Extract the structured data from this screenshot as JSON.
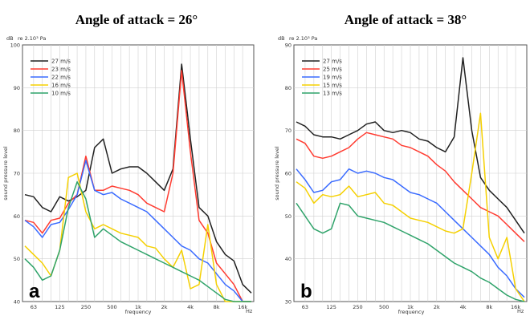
{
  "chart_data": [
    {
      "type": "line",
      "title": "Angle of attack = 26°",
      "panel_letter": "a",
      "unit_label": "dB",
      "ref_label": "re 2.10³ Pa",
      "ylabel": "sound pressure level",
      "xlabel": "frequency",
      "x_unit": "Hz",
      "ylim": [
        40,
        100
      ],
      "yticks": [
        40,
        50,
        60,
        70,
        80,
        90,
        100
      ],
      "x_tick_labels": [
        "63",
        "125",
        "250",
        "500",
        "1k",
        "2k",
        "4k",
        "8k",
        "16k"
      ],
      "x": [
        50,
        63,
        80,
        100,
        125,
        160,
        200,
        250,
        315,
        400,
        500,
        630,
        800,
        1000,
        1250,
        1600,
        2000,
        2500,
        3150,
        4000,
        5000,
        6300,
        8000,
        10000,
        12500,
        16000,
        20000
      ],
      "legend_position": "top-left",
      "series": [
        {
          "name": "27 m/s",
          "color": "#202020",
          "values": [
            65,
            64.5,
            62,
            61,
            64.5,
            63.5,
            64.5,
            66,
            76,
            78,
            70,
            71,
            71.5,
            71.5,
            70,
            68,
            66,
            71,
            95.5,
            78,
            62,
            60,
            54,
            51,
            49.5,
            44,
            42
          ]
        },
        {
          "name": "23 m/s",
          "color": "#ff3b30",
          "values": [
            59,
            58.5,
            56,
            59,
            59.5,
            63,
            65,
            74,
            66,
            66,
            67,
            66.5,
            66,
            65,
            63,
            62,
            61,
            70,
            94,
            75,
            59,
            56,
            49,
            46.5,
            44,
            40,
            39
          ]
        },
        {
          "name": "22 m/s",
          "color": "#3a6bff",
          "values": [
            59,
            57.5,
            55,
            58,
            58.5,
            61.5,
            65,
            73,
            66,
            65,
            65.5,
            64,
            63,
            62,
            61,
            59,
            57,
            55,
            53,
            52,
            50,
            49,
            46.5,
            44,
            42.5,
            40,
            39
          ]
        },
        {
          "name": "16 m/s",
          "color": "#f5d000",
          "values": [
            53,
            51,
            49,
            46,
            52,
            69,
            70,
            61,
            57,
            58,
            57,
            56,
            55.5,
            55,
            53,
            52.5,
            50,
            48,
            52,
            43,
            44,
            58,
            44,
            40,
            40,
            39,
            38
          ]
        },
        {
          "name": "10 m/s",
          "color": "#2fa36a",
          "values": [
            50,
            48,
            45,
            46,
            52,
            62,
            68,
            64,
            55,
            57,
            55.5,
            54,
            53,
            52,
            51,
            50,
            49,
            48,
            47,
            46,
            45,
            43.5,
            42,
            40.5,
            39.5,
            39,
            39
          ]
        }
      ]
    },
    {
      "type": "line",
      "title": "Angle of attack = 38°",
      "panel_letter": "b",
      "unit_label": "dB",
      "ref_label": "re 2.10³ Pa",
      "ylabel": "sound pressure level",
      "xlabel": "frequency",
      "x_unit": "Hz",
      "ylim": [
        30,
        90
      ],
      "yticks": [
        30,
        40,
        50,
        60,
        70,
        80,
        90
      ],
      "x_tick_labels": [
        "63",
        "125",
        "250",
        "500",
        "1k",
        "2k",
        "4k",
        "8k",
        "16k"
      ],
      "x": [
        50,
        63,
        80,
        100,
        125,
        160,
        200,
        250,
        315,
        400,
        500,
        630,
        800,
        1000,
        1250,
        1600,
        2000,
        2500,
        3150,
        4000,
        5000,
        6300,
        8000,
        10000,
        12500,
        16000,
        20000
      ],
      "legend_position": "top-left",
      "series": [
        {
          "name": "27 m/s",
          "color": "#202020",
          "values": [
            72,
            71,
            69,
            68.5,
            68.5,
            68,
            69,
            70,
            71.5,
            72,
            70,
            69.5,
            70,
            69.5,
            68,
            67.5,
            66,
            65,
            68.5,
            87,
            70,
            59,
            56,
            54,
            52,
            49,
            46
          ]
        },
        {
          "name": "25 m/s",
          "color": "#ff3b30",
          "values": [
            68,
            67,
            64,
            63.5,
            64,
            65,
            66,
            68,
            69.5,
            69,
            68.5,
            68,
            66.5,
            66,
            65,
            64,
            62,
            60.5,
            58,
            56,
            54,
            52,
            51,
            50,
            48,
            46,
            44
          ]
        },
        {
          "name": "19 m/s",
          "color": "#3a6bff",
          "values": [
            61,
            58.5,
            55.5,
            56,
            58,
            58.5,
            61,
            60,
            60.5,
            60,
            59,
            58.5,
            57,
            55.5,
            55,
            54,
            53,
            51,
            49,
            47,
            45,
            43,
            41,
            38,
            36,
            33,
            31
          ]
        },
        {
          "name": "15 m/s",
          "color": "#f5d000",
          "values": [
            58,
            56.5,
            53,
            55,
            54.5,
            55,
            57,
            54.5,
            55,
            55.5,
            53,
            52.5,
            51,
            49.5,
            49,
            48.5,
            47.5,
            46.5,
            46,
            47,
            60,
            74,
            45,
            40,
            45,
            33,
            30
          ]
        },
        {
          "name": "13 m/s",
          "color": "#2fa36a",
          "values": [
            53,
            50,
            47,
            46,
            47,
            53,
            52.5,
            50,
            49.5,
            49,
            48.5,
            47.5,
            46.5,
            45.5,
            44.5,
            43.5,
            42,
            40.5,
            39,
            38,
            37,
            35.5,
            34.5,
            33,
            31.5,
            30.5,
            30
          ]
        }
      ]
    }
  ]
}
